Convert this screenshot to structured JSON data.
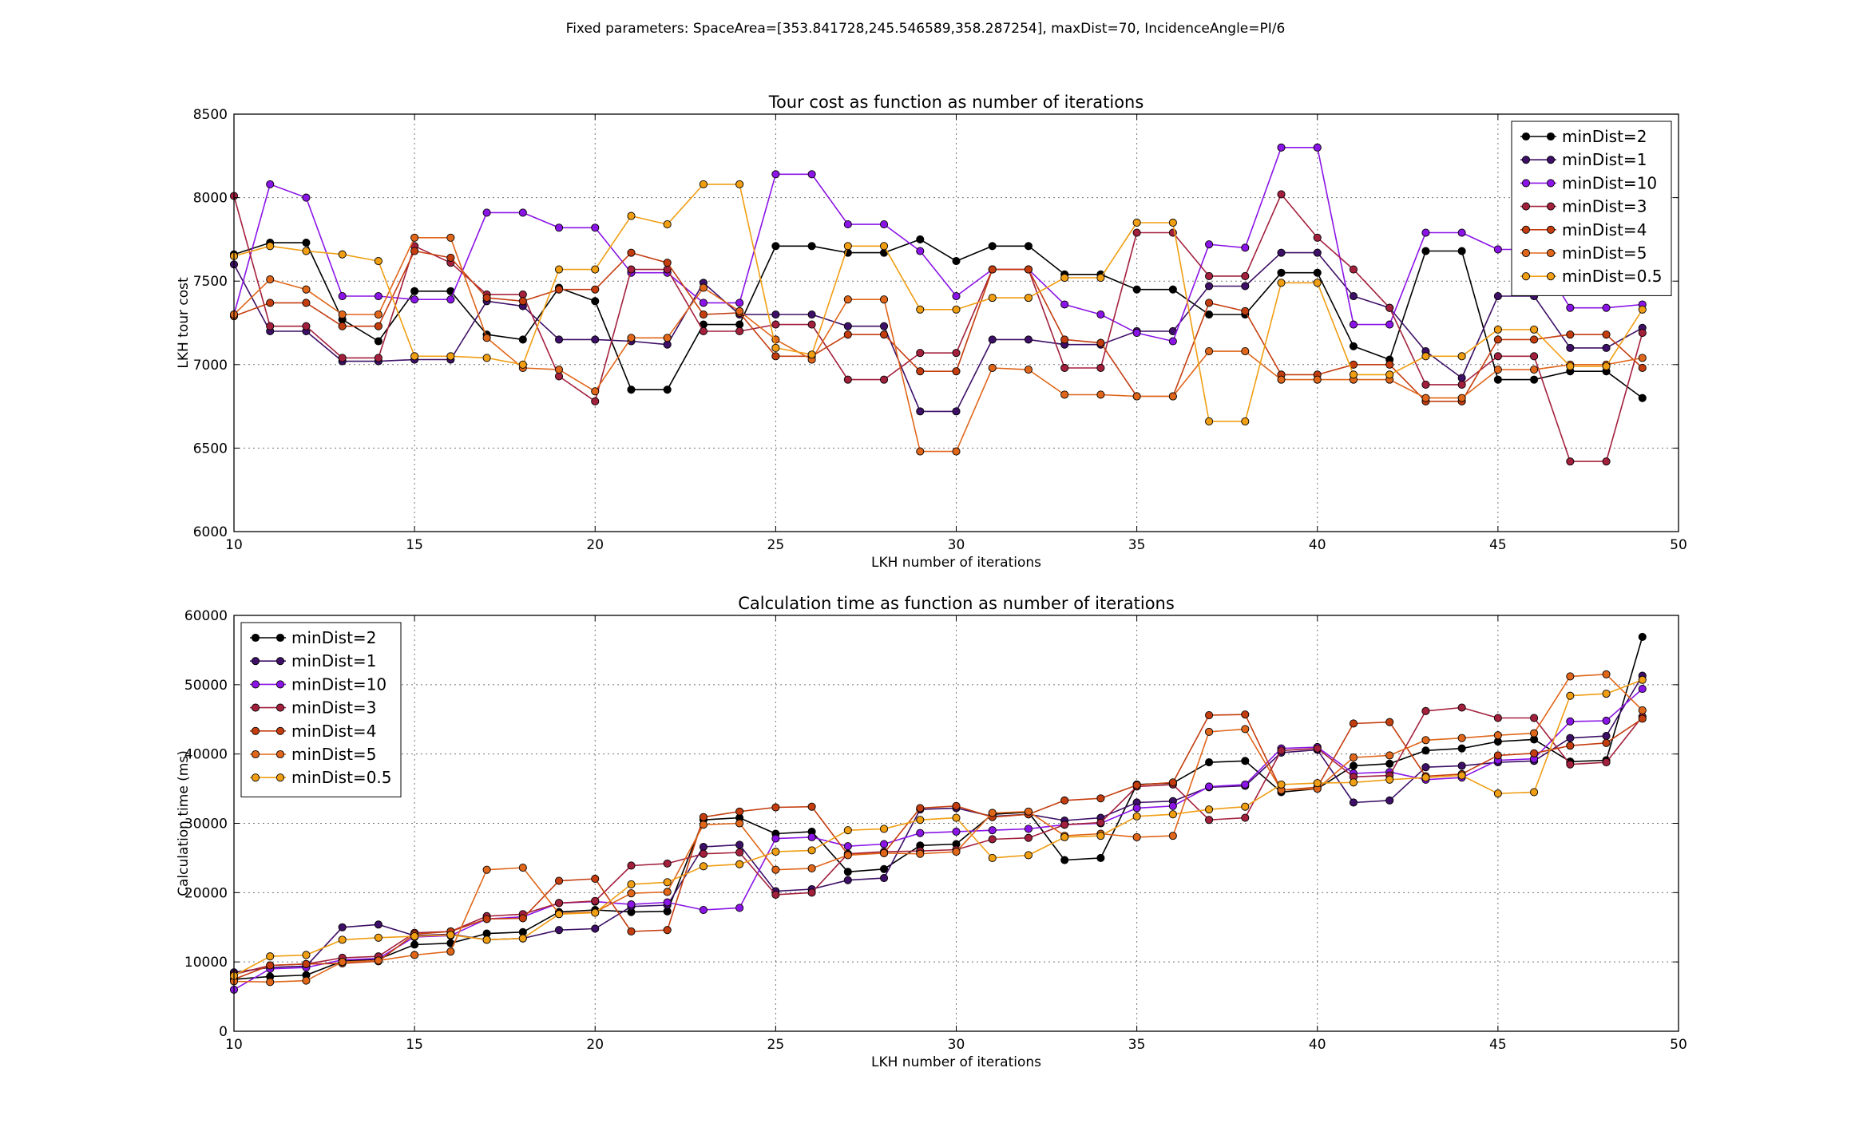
{
  "figure": {
    "suptitle": "Fixed parameters: SpaceArea=[353.841728,245.546589,358.287254], maxDist=70, IncidenceAngle=PI/6"
  },
  "chart_data": [
    {
      "type": "line",
      "title": "Tour cost as function as number of iterations",
      "xlabel": "LKH number of iterations",
      "ylabel": "LKH tour cost",
      "xlim": [
        10,
        50
      ],
      "ylim": [
        6000,
        8500
      ],
      "xticks": [
        10,
        15,
        20,
        25,
        30,
        35,
        40,
        45,
        50
      ],
      "yticks": [
        6000,
        6500,
        7000,
        7500,
        8000,
        8500
      ],
      "grid": true,
      "legend_position": "top-right",
      "x": [
        10,
        11,
        12,
        13,
        14,
        15,
        16,
        17,
        18,
        19,
        20,
        21,
        22,
        23,
        24,
        25,
        26,
        27,
        28,
        29,
        30,
        31,
        32,
        33,
        34,
        35,
        36,
        37,
        38,
        39,
        40,
        41,
        42,
        43,
        44,
        45,
        46,
        47,
        48,
        49
      ],
      "series": [
        {
          "name": "minDist=2",
          "color": "#000000",
          "values": [
            7660,
            7730,
            7730,
            7270,
            7140,
            7440,
            7440,
            7180,
            7150,
            7460,
            7380,
            6850,
            6850,
            7240,
            7240,
            7710,
            7710,
            7670,
            7670,
            7750,
            7620,
            7710,
            7710,
            7540,
            7540,
            7450,
            7450,
            7300,
            7300,
            7550,
            7550,
            7110,
            7030,
            7680,
            7680,
            6910,
            6910,
            6960,
            6960,
            6800
          ]
        },
        {
          "name": "minDist=1",
          "color": "#3d0f66",
          "values": [
            7600,
            7200,
            7200,
            7020,
            7020,
            7030,
            7030,
            7380,
            7350,
            7150,
            7150,
            7140,
            7120,
            7490,
            7300,
            7300,
            7300,
            7230,
            7230,
            6720,
            6720,
            7150,
            7150,
            7120,
            7120,
            7200,
            7200,
            7470,
            7470,
            7670,
            7670,
            7410,
            7340,
            7080,
            6920,
            7410,
            7410,
            7100,
            7100,
            7220
          ]
        },
        {
          "name": "minDist=10",
          "color": "#8a14e6",
          "values": [
            7300,
            8080,
            8000,
            7410,
            7410,
            7390,
            7390,
            7910,
            7910,
            7820,
            7820,
            7550,
            7550,
            7370,
            7370,
            8140,
            8140,
            7840,
            7840,
            7680,
            7410,
            7570,
            7570,
            7360,
            7300,
            7190,
            7140,
            7720,
            7700,
            8300,
            8300,
            7240,
            7240,
            7790,
            7790,
            7690,
            7690,
            7340,
            7340,
            7360
          ]
        },
        {
          "name": "minDist=3",
          "color": "#a3203d",
          "values": [
            8010,
            7230,
            7230,
            7040,
            7040,
            7710,
            7610,
            7420,
            7420,
            6930,
            6780,
            7570,
            7570,
            7200,
            7200,
            7240,
            7240,
            6910,
            6910,
            7070,
            7070,
            7570,
            7570,
            6980,
            6980,
            7790,
            7790,
            7530,
            7530,
            8020,
            7760,
            7570,
            7340,
            6880,
            6880,
            7050,
            7050,
            6420,
            6420,
            7190
          ]
        },
        {
          "name": "minDist=4",
          "color": "#c43d0f",
          "values": [
            7290,
            7370,
            7370,
            7230,
            7230,
            7680,
            7640,
            7400,
            7380,
            7450,
            7450,
            7670,
            7610,
            7300,
            7310,
            7050,
            7050,
            7180,
            7180,
            6960,
            6960,
            7570,
            7570,
            7150,
            7130,
            6810,
            6810,
            7370,
            7320,
            6940,
            6940,
            7000,
            7000,
            6780,
            6780,
            7150,
            7150,
            7180,
            7180,
            6980
          ]
        },
        {
          "name": "minDist=5",
          "color": "#e0661a",
          "values": [
            7300,
            7510,
            7450,
            7300,
            7300,
            7760,
            7760,
            7160,
            6980,
            6970,
            6840,
            7160,
            7160,
            7460,
            7320,
            7150,
            7030,
            7390,
            7390,
            6480,
            6480,
            6980,
            6970,
            6820,
            6820,
            6810,
            6810,
            7080,
            7080,
            6910,
            6910,
            6910,
            6910,
            6800,
            6800,
            6970,
            6970,
            7000,
            7000,
            7040
          ]
        },
        {
          "name": "minDist=0.5",
          "color": "#f09e12",
          "values": [
            7650,
            7710,
            7680,
            7660,
            7620,
            7050,
            7050,
            7040,
            7000,
            7570,
            7570,
            7890,
            7840,
            8080,
            8080,
            7100,
            7060,
            7710,
            7710,
            7330,
            7330,
            7400,
            7400,
            7520,
            7520,
            7850,
            7850,
            6660,
            6660,
            7490,
            7490,
            6940,
            6940,
            7050,
            7050,
            7210,
            7210,
            6990,
            6990,
            7330
          ]
        }
      ]
    },
    {
      "type": "line",
      "title": "Calculation time as function as number of iterations",
      "xlabel": "LKH number of iterations",
      "ylabel": "Calculation time (ms)",
      "xlim": [
        10,
        50
      ],
      "ylim": [
        0,
        60000
      ],
      "xticks": [
        10,
        15,
        20,
        25,
        30,
        35,
        40,
        45,
        50
      ],
      "yticks": [
        0,
        10000,
        20000,
        30000,
        40000,
        50000,
        60000
      ],
      "grid": true,
      "legend_position": "top-left",
      "x": [
        10,
        11,
        12,
        13,
        14,
        15,
        16,
        17,
        18,
        19,
        20,
        21,
        22,
        23,
        24,
        25,
        26,
        27,
        28,
        29,
        30,
        31,
        32,
        33,
        34,
        35,
        36,
        37,
        38,
        39,
        40,
        41,
        42,
        43,
        44,
        45,
        46,
        47,
        48,
        49
      ],
      "series": [
        {
          "name": "minDist=2",
          "color": "#000000",
          "values": [
            7500,
            7900,
            8100,
            10100,
            10400,
            12500,
            12700,
            14100,
            14300,
            17200,
            17500,
            17200,
            17300,
            30500,
            30800,
            28500,
            28800,
            23000,
            23400,
            26800,
            27000,
            31300,
            31600,
            24700,
            25000,
            35600,
            35800,
            38800,
            39000,
            34500,
            35000,
            38300,
            38600,
            40500,
            40800,
            41800,
            42100,
            38900,
            39100,
            56900
          ]
        },
        {
          "name": "minDist=1",
          "color": "#3d0f66",
          "values": [
            8500,
            9200,
            9400,
            15000,
            15400,
            13800,
            14000,
            13200,
            13400,
            14600,
            14800,
            18000,
            18200,
            26600,
            26900,
            20200,
            20500,
            21800,
            22100,
            32000,
            32200,
            31000,
            31300,
            30400,
            30800,
            33000,
            33200,
            35200,
            35400,
            40200,
            40600,
            33000,
            33300,
            38100,
            38300,
            38800,
            39000,
            42300,
            42600,
            51300
          ]
        },
        {
          "name": "minDist=10",
          "color": "#8a14e6",
          "values": [
            6000,
            9000,
            9200,
            10300,
            10500,
            13600,
            13800,
            16200,
            16500,
            18500,
            18700,
            18300,
            18600,
            17500,
            17800,
            27800,
            28000,
            26700,
            27000,
            28600,
            28800,
            29000,
            29200,
            29800,
            30000,
            32200,
            32500,
            35300,
            35600,
            40800,
            41000,
            37200,
            37400,
            36300,
            36600,
            39100,
            39300,
            44700,
            44800,
            49400
          ]
        },
        {
          "name": "minDist=3",
          "color": "#a3203d",
          "values": [
            8200,
            9500,
            9700,
            10600,
            10800,
            14200,
            14400,
            16600,
            16900,
            18500,
            18800,
            23900,
            24200,
            25600,
            25800,
            19700,
            20000,
            25600,
            25900,
            26000,
            26200,
            27700,
            27900,
            29800,
            30100,
            35300,
            35600,
            30500,
            30800,
            40500,
            40800,
            36700,
            36900,
            46200,
            46700,
            45200,
            45200,
            38500,
            38800,
            45400
          ]
        },
        {
          "name": "minDist=4",
          "color": "#c43d0f",
          "values": [
            7500,
            9500,
            9700,
            9800,
            10100,
            14000,
            14400,
            16200,
            16300,
            21700,
            22000,
            14400,
            14600,
            30900,
            31700,
            32300,
            32400,
            25500,
            25700,
            32200,
            32500,
            30900,
            31300,
            33300,
            33600,
            35500,
            35900,
            45600,
            45700,
            34800,
            35200,
            44400,
            44600,
            36800,
            37100,
            39800,
            40100,
            41200,
            41600,
            45100
          ]
        },
        {
          "name": "minDist=5",
          "color": "#e0661a",
          "values": [
            7200,
            7100,
            7300,
            10000,
            10200,
            11000,
            11500,
            23300,
            23600,
            17000,
            17200,
            19900,
            20100,
            29800,
            30000,
            23300,
            23500,
            25400,
            25700,
            25600,
            25900,
            31500,
            31700,
            28200,
            28500,
            28000,
            28200,
            43200,
            43600,
            34800,
            35000,
            39500,
            39800,
            42000,
            42300,
            42700,
            43000,
            51200,
            51500,
            46300
          ]
        },
        {
          "name": "minDist=0.5",
          "color": "#f09e12",
          "values": [
            8000,
            10800,
            11000,
            13200,
            13500,
            13700,
            13900,
            13200,
            13400,
            16900,
            17100,
            21200,
            21500,
            23800,
            24100,
            25900,
            26100,
            29000,
            29200,
            30500,
            30800,
            25000,
            25400,
            28000,
            28200,
            31000,
            31300,
            32000,
            32400,
            35600,
            35800,
            35900,
            36300,
            36600,
            36900,
            34300,
            34500,
            48400,
            48700,
            50700
          ]
        }
      ]
    }
  ]
}
